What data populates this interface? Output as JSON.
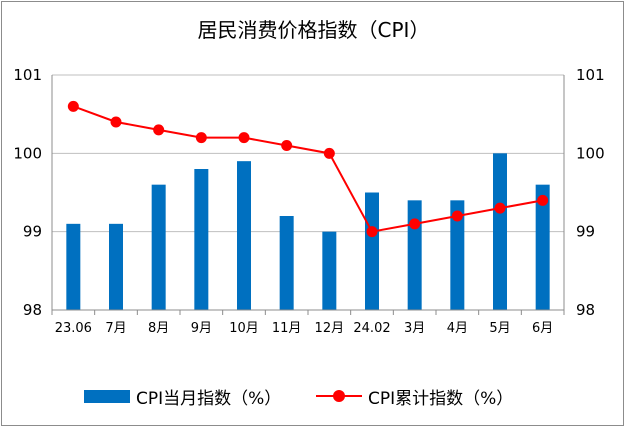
{
  "chart_data": {
    "type": "bar",
    "title": "居民消费价格指数（CPI）",
    "categories": [
      "23.06",
      "7月",
      "8月",
      "9月",
      "10月",
      "11月",
      "12月",
      "24.02",
      "3月",
      "4月",
      "5月",
      "6月"
    ],
    "ylim": [
      98,
      101
    ],
    "y_ticks": [
      "98",
      "99",
      "100",
      "101"
    ],
    "y2lim": [
      98,
      101
    ],
    "y2_ticks": [
      "98",
      "99",
      "100",
      "101"
    ],
    "grid": true,
    "legend_position": "bottom",
    "series": [
      {
        "name": "CPI当月指数（%）",
        "type": "bar",
        "axis": "left",
        "color": "#0070c0",
        "values": [
          99.1,
          99.1,
          99.6,
          99.8,
          99.9,
          99.2,
          99.0,
          99.5,
          99.4,
          99.4,
          100.0,
          99.6
        ]
      },
      {
        "name": "CPI累计指数（%）",
        "type": "line",
        "axis": "right",
        "color": "#ff0000",
        "values": [
          100.6,
          100.4,
          100.3,
          100.2,
          100.2,
          100.1,
          100.0,
          99.0,
          99.1,
          99.2,
          99.3,
          99.4
        ]
      }
    ]
  }
}
